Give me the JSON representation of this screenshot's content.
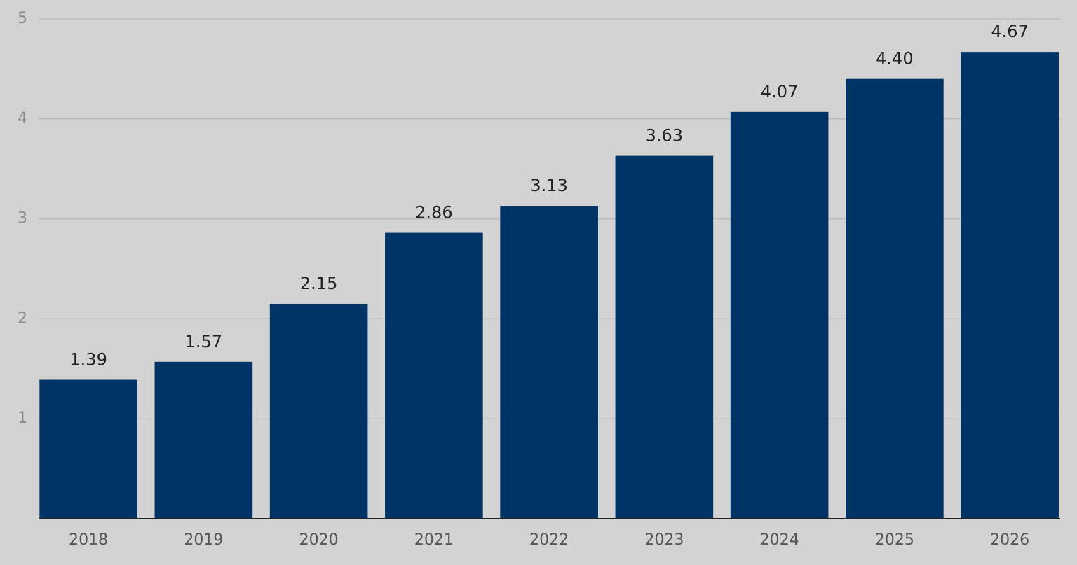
{
  "chart_data": {
    "type": "bar",
    "categories": [
      "2018",
      "2019",
      "2020",
      "2021",
      "2022",
      "2023",
      "2024",
      "2025",
      "2026"
    ],
    "values": [
      1.39,
      1.57,
      2.15,
      2.86,
      3.13,
      3.63,
      4.07,
      4.4,
      4.67
    ],
    "value_labels": [
      "1.39",
      "1.57",
      "2.15",
      "2.86",
      "3.13",
      "3.63",
      "4.07",
      "4.40",
      "4.67"
    ],
    "color": "#003366",
    "ylim": [
      0,
      5
    ],
    "yticks": [
      1,
      2,
      3,
      4,
      5
    ],
    "grid": true
  }
}
